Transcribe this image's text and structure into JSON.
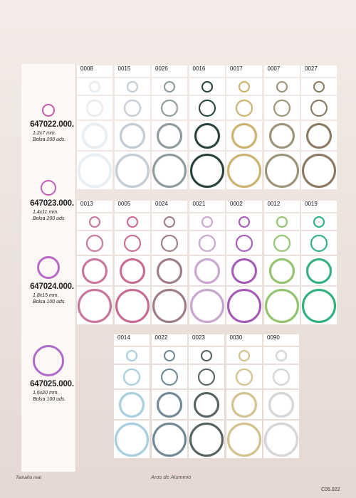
{
  "products": [
    {
      "code": "647022.000.",
      "size": "1,2x7 mm.",
      "pack": "Bolsa 200 uds.",
      "color": "#c95ab0"
    },
    {
      "code": "647023.000.",
      "size": "1,4x11 mm.",
      "pack": "Bolsa 200 uds.",
      "color": "#c35fb8"
    },
    {
      "code": "647024.000.",
      "size": "1,8x15 mm.",
      "pack": "Bolsa 100 uds.",
      "color": "#b968c6"
    },
    {
      "code": "647025.000.",
      "size": "1,6x20 mm.",
      "pack": "Bolsa 100 uds.",
      "color": "#b06ac9"
    }
  ],
  "tables": [
    {
      "colors": [
        {
          "code": "0008",
          "hex": "#e8eef2"
        },
        {
          "code": "0015",
          "hex": "#c3ccd5"
        },
        {
          "code": "0026",
          "hex": "#8f9a9c"
        },
        {
          "code": "0016",
          "hex": "#27423a"
        },
        {
          "code": "0017",
          "hex": "#cbb36c"
        },
        {
          "code": "0007",
          "hex": "#9c9478"
        },
        {
          "code": "0027",
          "hex": "#8a7a62"
        }
      ]
    },
    {
      "colors": [
        {
          "code": "0013",
          "hex": "#c9749a"
        },
        {
          "code": "0005",
          "hex": "#c86a92"
        },
        {
          "code": "0024",
          "hex": "#9f7c85"
        },
        {
          "code": "0021",
          "hex": "#c9a6cf"
        },
        {
          "code": "0002",
          "hex": "#a45ab6"
        },
        {
          "code": "0012",
          "hex": "#92c46c"
        },
        {
          "code": "0019",
          "hex": "#2fb07f"
        }
      ]
    },
    {
      "colors": [
        {
          "code": "0014",
          "hex": "#a6cfe0"
        },
        {
          "code": "0022",
          "hex": "#6f8893"
        },
        {
          "code": "0023",
          "hex": "#55605f"
        },
        {
          "code": "0030",
          "hex": "#d3c28b"
        },
        {
          "code": "0090",
          "hex": "#d6d6d8"
        }
      ]
    }
  ],
  "footer": {
    "left": "Tamaño real",
    "center": "Aros de Aluminio",
    "right": "C05.022"
  }
}
